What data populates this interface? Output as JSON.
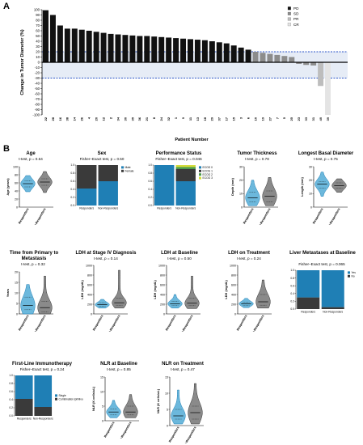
{
  "panel_a": {
    "letter": "A"
  },
  "panel_b": {
    "letter": "B"
  },
  "chart_data": [
    {
      "type": "bar",
      "id": "waterfall",
      "ylabel": "Change in Tumor Diameter (%)",
      "xlabel": "Patient Number",
      "ylim": [
        -100,
        100
      ],
      "yticks": [
        -100,
        -90,
        -80,
        -70,
        -60,
        -50,
        -40,
        -30,
        -20,
        -10,
        0,
        10,
        20,
        30,
        40,
        50,
        60,
        70,
        80,
        90,
        100
      ],
      "reference_lines": [
        20,
        -30
      ],
      "legend": {
        "position": "top-right",
        "entries": [
          "PD",
          "SD",
          "PR",
          "CR"
        ]
      },
      "colors": {
        "PD": "#111111",
        "SD": "#8c8c8c",
        "PR": "#bdbdbd",
        "CR": "#e4e4e4"
      },
      "categories": [
        "22",
        "28",
        "16",
        "38",
        "14",
        "26",
        "4",
        "20",
        "12",
        "2",
        "34",
        "30",
        "35",
        "36",
        "21",
        "8",
        "24",
        "32",
        "1",
        "9",
        "11",
        "13",
        "18",
        "29",
        "37",
        "17",
        "15",
        "3",
        "6",
        "10",
        "19",
        "27",
        "7",
        "5",
        "25",
        "23",
        "33",
        "31",
        "40",
        "39"
      ],
      "values": [
        99,
        90,
        70,
        64,
        64,
        62,
        60,
        58,
        56,
        54,
        53,
        52,
        51,
        50,
        50,
        49,
        48,
        47,
        46,
        45,
        44,
        43,
        42,
        40,
        38,
        36,
        32,
        28,
        24,
        20,
        18,
        16,
        14,
        12,
        10,
        -3,
        -5,
        -6,
        -45,
        -100
      ],
      "response": [
        "PD",
        "PD",
        "PD",
        "PD",
        "PD",
        "PD",
        "PD",
        "PD",
        "PD",
        "PD",
        "PD",
        "PD",
        "PD",
        "PD",
        "PD",
        "PD",
        "PD",
        "PD",
        "PD",
        "PD",
        "PD",
        "PD",
        "PD",
        "PD",
        "PD",
        "PD",
        "PD",
        "PD",
        "PD",
        "SD",
        "SD",
        "SD",
        "SD",
        "SD",
        "SD",
        "SD",
        "SD",
        "SD",
        "PR",
        "CR"
      ]
    },
    {
      "type": "violin",
      "id": "age",
      "title": "Age",
      "subtitle": "t-test, p = 0.64",
      "ylabel": "Age (years)",
      "ylim": [
        0,
        100
      ],
      "yticks": [
        0,
        20,
        40,
        60,
        80,
        100
      ],
      "categories": [
        "Responders",
        "Non-Responders"
      ],
      "series": [
        {
          "name": "Responders",
          "median": 58,
          "q1": 50,
          "q3": 65,
          "min": 38,
          "max": 78
        },
        {
          "name": "Non-Responders",
          "median": 62,
          "q1": 54,
          "q3": 70,
          "min": 36,
          "max": 88
        }
      ]
    },
    {
      "type": "stacked_bar",
      "id": "sex",
      "title": "Sex",
      "subtitle": "Fisher–Exact test, p = 0.50",
      "ylim": [
        0,
        1
      ],
      "yticks": [
        0.0,
        0.2,
        0.4,
        0.6,
        0.8,
        1.0
      ],
      "categories": [
        "Responders",
        "Non-Responders"
      ],
      "series": [
        {
          "name": "Male",
          "color": "#1f7fb5",
          "values": [
            0.42,
            0.6
          ]
        },
        {
          "name": "Female",
          "color": "#3a3a3a",
          "values": [
            0.58,
            0.4
          ]
        }
      ],
      "legend": [
        "Male",
        "Female"
      ]
    },
    {
      "type": "stacked_bar",
      "id": "ecog",
      "title": "Performance Status",
      "subtitle": "Fisher–Exact test, p = 0.046",
      "ylim": [
        0,
        1
      ],
      "yticks": [
        0.0,
        0.2,
        0.4,
        0.6,
        0.8,
        1.0
      ],
      "categories": [
        "Responders",
        "Non-Responders"
      ],
      "series": [
        {
          "name": "ECOG 0",
          "color": "#1f7fb5",
          "values": [
            1.0,
            0.6
          ]
        },
        {
          "name": "ECOG 1",
          "color": "#3a3a3a",
          "values": [
            0,
            0.3
          ]
        },
        {
          "name": "ECOG 2",
          "color": "#4d9a4d",
          "values": [
            0,
            0.05
          ]
        },
        {
          "name": "ECOG 3",
          "color": "#d4dc3a",
          "values": [
            0,
            0.05
          ]
        }
      ],
      "legend": [
        "ECOG 0",
        "ECOG 1",
        "ECOG 2",
        "ECOG 3"
      ]
    },
    {
      "type": "violin",
      "id": "thickness",
      "title": "Tumor Thickness",
      "subtitle": "t-test, p = 0.78",
      "ylabel": "Depth (mm)",
      "ylim": [
        0,
        30
      ],
      "yticks": [
        0,
        10,
        20,
        30
      ],
      "categories": [
        "Responders",
        "Non-Responders"
      ],
      "series": [
        {
          "name": "Responders",
          "median": 7,
          "q1": 4,
          "q3": 11,
          "min": 1,
          "max": 20
        },
        {
          "name": "Non-Responders",
          "median": 8,
          "q1": 4,
          "q3": 12,
          "min": 1,
          "max": 22
        }
      ]
    },
    {
      "type": "violin",
      "id": "basal",
      "title": "Longest Basal Diameter",
      "subtitle": "t-test, p = 0.75",
      "ylabel": "Length (mm)",
      "ylim": [
        0,
        30
      ],
      "yticks": [
        0,
        10,
        20,
        30
      ],
      "categories": [
        "Responders",
        "Non-Responders"
      ],
      "series": [
        {
          "name": "Responders",
          "median": 17,
          "q1": 14,
          "q3": 19,
          "min": 8,
          "max": 26
        },
        {
          "name": "Non-Responders",
          "median": 16,
          "q1": 14,
          "q3": 18,
          "min": 11,
          "max": 21
        }
      ]
    },
    {
      "type": "violin",
      "id": "time",
      "title": "Time from Primary to Metastasis",
      "subtitle": "t-test, p = 0.32",
      "ylabel": "Years",
      "ylim": [
        0,
        20
      ],
      "yticks": [
        0,
        5,
        10,
        15,
        20
      ],
      "categories": [
        "Responders",
        "Non-Responders"
      ],
      "series": [
        {
          "name": "Responders",
          "median": 4,
          "q1": 2,
          "q3": 8,
          "min": 0,
          "max": 14
        },
        {
          "name": "Non-Responders",
          "median": 3,
          "q1": 1,
          "q3": 6,
          "min": 0,
          "max": 18
        }
      ]
    },
    {
      "type": "violin",
      "id": "ldh4",
      "title": "LDH at Stage IV Diagnosis",
      "subtitle": "t-test, p = 0.14",
      "ylabel": "LDH (mg/dL)",
      "ylim": [
        0,
        1000
      ],
      "yticks": [
        0,
        200,
        400,
        600,
        800,
        1000
      ],
      "categories": [
        "Responders",
        "Non-Responders"
      ],
      "series": [
        {
          "name": "Responders",
          "median": 190,
          "q1": 160,
          "q3": 230,
          "min": 120,
          "max": 300
        },
        {
          "name": "Non-Responders",
          "median": 230,
          "q1": 180,
          "q3": 320,
          "min": 120,
          "max": 900
        }
      ]
    },
    {
      "type": "violin",
      "id": "ldhb",
      "title": "LDH at Baseline",
      "subtitle": "t-test, p = 0.50",
      "ylabel": "LDH (mg/dL)",
      "ylim": [
        0,
        1000
      ],
      "yticks": [
        0,
        200,
        400,
        600,
        800,
        1000
      ],
      "categories": [
        "Responders",
        "Non-Responders"
      ],
      "series": [
        {
          "name": "Responders",
          "median": 210,
          "q1": 170,
          "q3": 260,
          "min": 120,
          "max": 400
        },
        {
          "name": "Non-Responders",
          "median": 220,
          "q1": 170,
          "q3": 320,
          "min": 110,
          "max": 780
        }
      ]
    },
    {
      "type": "violin",
      "id": "ldht",
      "title": "LDH on Treatment",
      "subtitle": "t-test, p = 0.24",
      "ylabel": "LDH (mg/dL)",
      "ylim": [
        0,
        1000
      ],
      "yticks": [
        0,
        200,
        400,
        600,
        800,
        1000
      ],
      "categories": [
        "Responders",
        "Non-Responders"
      ],
      "series": [
        {
          "name": "Responders",
          "median": 210,
          "q1": 170,
          "q3": 240,
          "min": 130,
          "max": 320
        },
        {
          "name": "Non-Responders",
          "median": 250,
          "q1": 180,
          "q3": 400,
          "min": 120,
          "max": 700
        }
      ]
    },
    {
      "type": "stacked_bar",
      "id": "liver",
      "title": "Liver Metastases at Baseline",
      "subtitle": "Fisher–Exact test, p = 0.065",
      "ylim": [
        0,
        1
      ],
      "yticks": [
        0.0,
        0.2,
        0.4,
        0.6,
        0.8,
        1.0
      ],
      "categories": [
        "Responders",
        "Non-Responders"
      ],
      "series": [
        {
          "name": "No",
          "color": "#3a3a3a",
          "values": [
            0.3,
            0.05
          ]
        },
        {
          "name": "Yes",
          "color": "#1f7fb5",
          "values": [
            0.7,
            0.95
          ]
        }
      ],
      "legend": [
        "Yes",
        "No"
      ]
    },
    {
      "type": "stacked_bar",
      "id": "firstline",
      "title": "First-Line Immunotherapy",
      "subtitle": "Fisher–Exact test, p = 0.24",
      "ylim": [
        0,
        1
      ],
      "yticks": [
        0.0,
        0.2,
        0.4,
        0.6,
        0.8,
        1.0
      ],
      "categories": [
        "Responders",
        "Non-Responders"
      ],
      "series": [
        {
          "name": "Combination ipi/Nivo",
          "color": "#3a3a3a",
          "values": [
            0.42,
            0.22
          ]
        },
        {
          "name": "Single",
          "color": "#1f7fb5",
          "values": [
            0.58,
            0.78
          ]
        }
      ],
      "legend": [
        "Single",
        "Combination ipi/Nivo"
      ]
    },
    {
      "type": "violin",
      "id": "nlrb",
      "title": "NLR at Baseline",
      "subtitle": "t-test, p = 0.85",
      "ylabel": "NLR (K cells/uL)",
      "ylim": [
        0,
        15
      ],
      "yticks": [
        0,
        5,
        10,
        15
      ],
      "categories": [
        "Responders",
        "Non-Responders"
      ],
      "series": [
        {
          "name": "Responders",
          "median": 3,
          "q1": 2,
          "q3": 4,
          "min": 1,
          "max": 7
        },
        {
          "name": "Non-Responders",
          "median": 3,
          "q1": 2,
          "q3": 5,
          "min": 1,
          "max": 9
        }
      ]
    },
    {
      "type": "violin",
      "id": "nlrt",
      "title": "NLR on Treatment",
      "subtitle": "t-test, p = 0.47",
      "ylabel": "NLR (K cells/uL)",
      "ylim": [
        0,
        15
      ],
      "yticks": [
        0,
        5,
        10,
        15
      ],
      "categories": [
        "Responders",
        "Non-Responders"
      ],
      "series": [
        {
          "name": "Responders",
          "median": 3,
          "q1": 2,
          "q3": 5,
          "min": 0.5,
          "max": 11
        },
        {
          "name": "Non-Responders",
          "median": 4,
          "q1": 2,
          "q3": 6,
          "min": 0.5,
          "max": 13
        }
      ]
    }
  ]
}
